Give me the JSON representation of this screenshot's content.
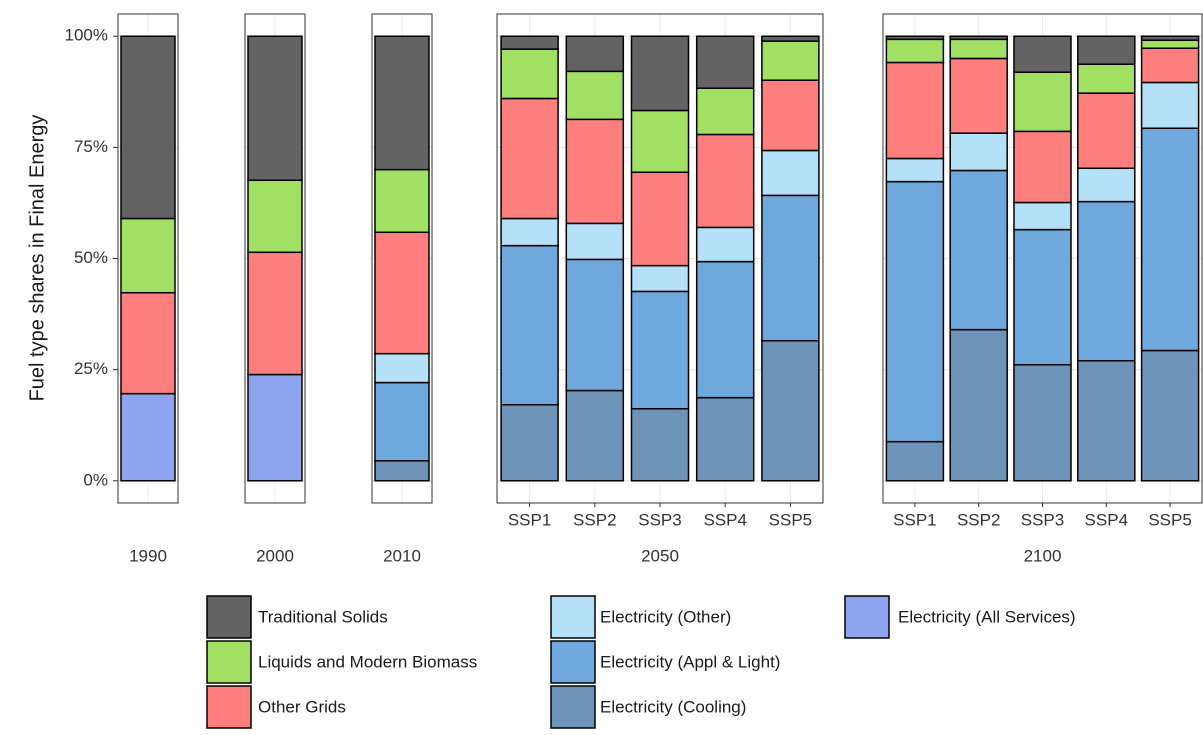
{
  "chart_data": [
    {
      "type": "bar",
      "stacked": true,
      "title": "1990",
      "categories": [
        null
      ],
      "y_label": "Fuel type shares in Final Energy",
      "ylim": [
        -5,
        105
      ],
      "yticks": [
        {
          "value": 0,
          "label": "0%"
        },
        {
          "value": 25,
          "label": "25%"
        },
        {
          "value": 50,
          "label": "50%"
        },
        {
          "value": 75,
          "label": "75%"
        },
        {
          "value": 100,
          "label": "100%"
        }
      ],
      "grid": true,
      "legend": "bottom",
      "series": [
        {
          "name": "Electricity (All Services)",
          "color": "#8ea4ee",
          "values": [
            19.6
          ]
        },
        {
          "name": "Electricity (Cooling)",
          "color": "#6f94b9",
          "values": [
            null
          ]
        },
        {
          "name": "Electricity (Appl & Light)",
          "color": "#6fa8dc",
          "values": [
            null
          ]
        },
        {
          "name": "Electricity (Other)",
          "color": "#b5e1f8",
          "values": [
            null
          ]
        },
        {
          "name": "Other Grids",
          "color": "#ff7f7f",
          "values": [
            22.7
          ]
        },
        {
          "name": "Liquids and Modern Biomass",
          "color": "#a2e064",
          "values": [
            16.7
          ]
        },
        {
          "name": "Traditional Solids",
          "color": "#636363",
          "values": [
            41.0
          ]
        }
      ]
    },
    {
      "type": "bar",
      "stacked": true,
      "title": "2000",
      "categories": [
        null
      ],
      "series": [
        {
          "name": "Electricity (All Services)",
          "color": "#8ea4ee",
          "values": [
            23.9
          ]
        },
        {
          "name": "Electricity (Cooling)",
          "color": "#6f94b9",
          "values": [
            null
          ]
        },
        {
          "name": "Electricity (Appl & Light)",
          "color": "#6fa8dc",
          "values": [
            null
          ]
        },
        {
          "name": "Electricity (Other)",
          "color": "#b5e1f8",
          "values": [
            null
          ]
        },
        {
          "name": "Other Grids",
          "color": "#ff7f7f",
          "values": [
            27.5
          ]
        },
        {
          "name": "Liquids and Modern Biomass",
          "color": "#a2e064",
          "values": [
            16.2
          ]
        },
        {
          "name": "Traditional Solids",
          "color": "#636363",
          "values": [
            32.4
          ]
        }
      ]
    },
    {
      "type": "bar",
      "stacked": true,
      "title": "2010",
      "categories": [
        null
      ],
      "series": [
        {
          "name": "Electricity (All Services)",
          "color": "#8ea4ee",
          "values": [
            null
          ]
        },
        {
          "name": "Electricity (Cooling)",
          "color": "#6f94b9",
          "values": [
            4.5
          ]
        },
        {
          "name": "Electricity (Appl & Light)",
          "color": "#6fa8dc",
          "values": [
            17.6
          ]
        },
        {
          "name": "Electricity (Other)",
          "color": "#b5e1f8",
          "values": [
            6.5
          ]
        },
        {
          "name": "Other Grids",
          "color": "#ff7f7f",
          "values": [
            27.3
          ]
        },
        {
          "name": "Liquids and Modern Biomass",
          "color": "#a2e064",
          "values": [
            14.1
          ]
        },
        {
          "name": "Traditional Solids",
          "color": "#636363",
          "values": [
            30.0
          ]
        }
      ]
    },
    {
      "type": "bar",
      "stacked": true,
      "title": "2050",
      "categories": [
        "SSP1",
        "SSP2",
        "SSP3",
        "SSP4",
        "SSP5"
      ],
      "series": [
        {
          "name": "Electricity (All Services)",
          "color": "#8ea4ee",
          "values": [
            null,
            null,
            null,
            null,
            null
          ]
        },
        {
          "name": "Electricity (Cooling)",
          "color": "#6f94b9",
          "values": [
            17.1,
            20.3,
            16.2,
            18.7,
            31.5
          ]
        },
        {
          "name": "Electricity (Appl & Light)",
          "color": "#6fa8dc",
          "values": [
            35.8,
            29.5,
            26.4,
            30.6,
            32.7
          ]
        },
        {
          "name": "Electricity (Other)",
          "color": "#b5e1f8",
          "values": [
            6.1,
            8.1,
            5.8,
            7.7,
            10.1
          ]
        },
        {
          "name": "Other Grids",
          "color": "#ff7f7f",
          "values": [
            27.0,
            23.4,
            21.0,
            20.9,
            15.8
          ]
        },
        {
          "name": "Liquids and Modern Biomass",
          "color": "#a2e064",
          "values": [
            11.1,
            10.8,
            13.9,
            10.4,
            8.8
          ]
        },
        {
          "name": "Traditional Solids",
          "color": "#636363",
          "values": [
            2.9,
            7.9,
            16.7,
            11.7,
            1.1
          ]
        }
      ]
    },
    {
      "type": "bar",
      "stacked": true,
      "title": "2100",
      "categories": [
        "SSP1",
        "SSP2",
        "SSP3",
        "SSP4",
        "SSP5"
      ],
      "series": [
        {
          "name": "Electricity (All Services)",
          "color": "#8ea4ee",
          "values": [
            null,
            null,
            null,
            null,
            null
          ]
        },
        {
          "name": "Electricity (Cooling)",
          "color": "#6f94b9",
          "values": [
            8.8,
            34.0,
            26.1,
            27.0,
            29.3
          ]
        },
        {
          "name": "Electricity (Appl & Light)",
          "color": "#6fa8dc",
          "values": [
            58.5,
            35.8,
            30.4,
            35.8,
            50.0
          ]
        },
        {
          "name": "Electricity (Other)",
          "color": "#b5e1f8",
          "values": [
            5.2,
            8.4,
            6.1,
            7.5,
            10.3
          ]
        },
        {
          "name": "Other Grids",
          "color": "#ff7f7f",
          "values": [
            21.6,
            16.8,
            16.0,
            16.9,
            7.7
          ]
        },
        {
          "name": "Liquids and Modern Biomass",
          "color": "#a2e064",
          "values": [
            5.2,
            4.3,
            13.3,
            6.5,
            1.8
          ]
        },
        {
          "name": "Traditional Solids",
          "color": "#636363",
          "values": [
            0.7,
            0.7,
            8.1,
            6.3,
            0.9
          ]
        }
      ]
    }
  ]
}
